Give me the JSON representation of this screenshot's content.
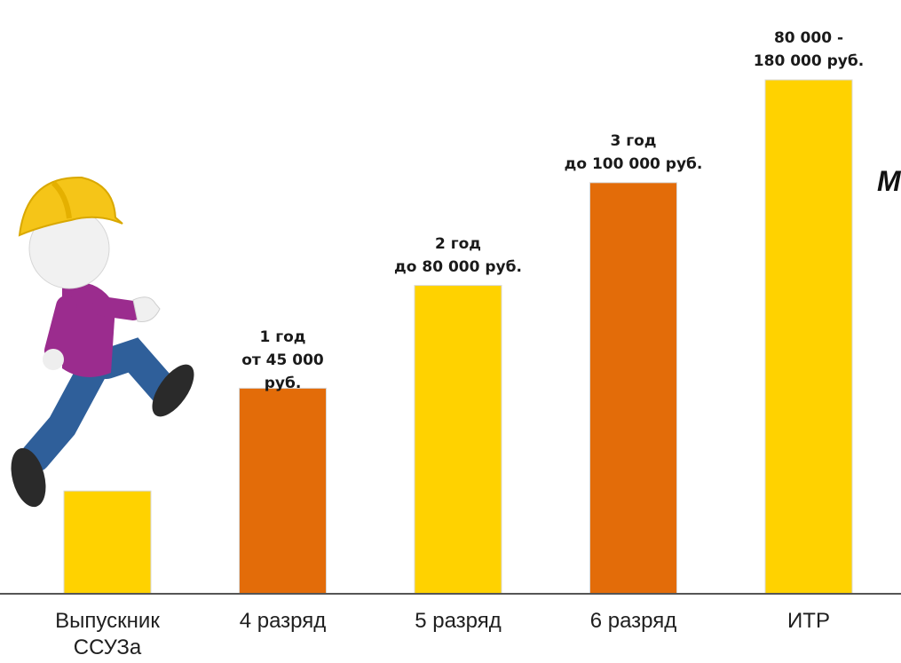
{
  "chart_data": {
    "type": "bar",
    "categories": [
      "Выпускник\nССУЗа",
      "4 разряд",
      "5 разряд",
      "6 разряд",
      "ИТР"
    ],
    "values": [
      20,
      40,
      60,
      80,
      100
    ],
    "bar_labels": [
      "",
      "1 год\nот 45  000\nруб.",
      "2 год\nдо 80 000 руб.",
      "3 год\nдо 100 000 руб.",
      "80 000 -\n180 000 руб."
    ],
    "colors": [
      "#FFD200",
      "#E36C09",
      "#FFD200",
      "#E36C09",
      "#FFD200"
    ],
    "axis_color": "#555555",
    "ylim": [
      0,
      100
    ],
    "grid": false,
    "legend": "none"
  },
  "cropped_text": "М",
  "illustration": {
    "icon": "construction-worker-climbing-icon",
    "helmet_color": "#F5C518",
    "shirt_color": "#9B2C8E",
    "pants_color": "#2F5F9A"
  }
}
